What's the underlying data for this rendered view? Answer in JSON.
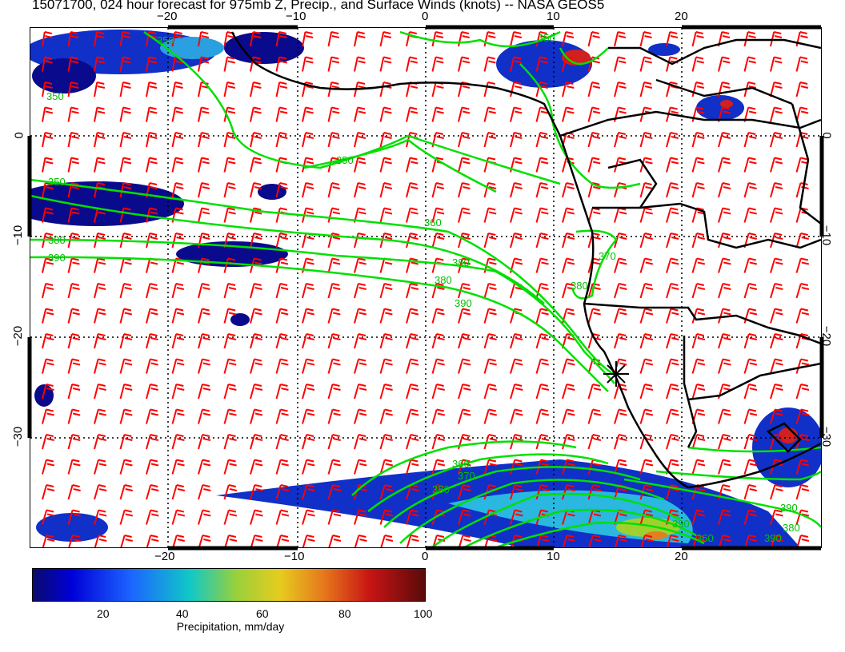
{
  "title": "15071700, 024 hour forecast for 975mb Z, Precip., and Surface Winds (knots) -- NASA GEOS5",
  "axes": {
    "top_lon_labels": [
      "−20",
      "−10",
      "0",
      "10",
      "20"
    ],
    "bottom_lon_labels": [
      "−20",
      "−10",
      "0",
      "10",
      "20"
    ],
    "left_lat_labels": [
      "0",
      "−10",
      "−20",
      "−30"
    ],
    "right_lat_labels": [
      "0",
      "−10",
      "−20",
      "−30"
    ],
    "lon_range": [
      -30,
      30
    ],
    "lat_range": [
      -40,
      10
    ]
  },
  "contour_labels": [
    "350",
    "350",
    "350",
    "350",
    "360",
    "380",
    "380",
    "380",
    "390",
    "390",
    "370",
    "380",
    "350",
    "360",
    "370",
    "380",
    "390",
    "380",
    "390",
    "360",
    "390"
  ],
  "colorbar": {
    "ticks": [
      "20",
      "40",
      "60",
      "80",
      "100"
    ],
    "label": "Precipitation, mm/day",
    "range": [
      0,
      100
    ]
  },
  "colors": {
    "wind_barbs": "#ff0000",
    "contours": "#00e000",
    "coastline": "#000000",
    "precip_low": "#0a0a8c",
    "precip_high": "#5a0a0a"
  },
  "marker": {
    "symbol": "asterisk",
    "lon": 15,
    "lat": -24
  }
}
